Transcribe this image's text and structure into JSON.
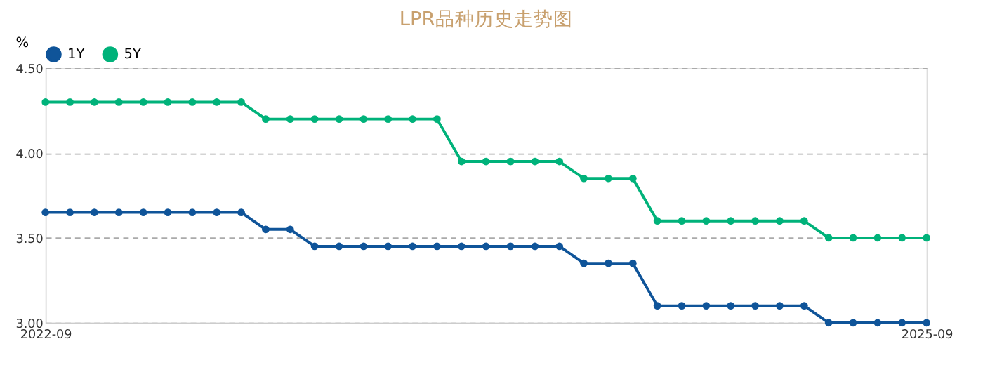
{
  "chart_data": {
    "type": "line",
    "title": "LPR品种历史走势图",
    "ylabel": "%",
    "categories": [
      "2022-09",
      null,
      null,
      null,
      null,
      null,
      null,
      null,
      null,
      null,
      null,
      null,
      null,
      null,
      null,
      null,
      null,
      null,
      null,
      null,
      null,
      null,
      null,
      null,
      null,
      null,
      null,
      null,
      null,
      null,
      null,
      null,
      null,
      null,
      null,
      null,
      "2025-09"
    ],
    "series": [
      {
        "name": "1Y",
        "color": "#0f5499",
        "values": [
          3.65,
          3.65,
          3.65,
          3.65,
          3.65,
          3.65,
          3.65,
          3.65,
          3.65,
          3.55,
          3.55,
          3.45,
          3.45,
          3.45,
          3.45,
          3.45,
          3.45,
          3.45,
          3.45,
          3.45,
          3.45,
          3.45,
          3.35,
          3.35,
          3.35,
          3.1,
          3.1,
          3.1,
          3.1,
          3.1,
          3.1,
          3.1,
          3.0,
          3.0,
          3.0,
          3.0,
          3.0
        ]
      },
      {
        "name": "5Y",
        "color": "#00b27a",
        "values": [
          4.3,
          4.3,
          4.3,
          4.3,
          4.3,
          4.3,
          4.3,
          4.3,
          4.3,
          4.2,
          4.2,
          4.2,
          4.2,
          4.2,
          4.2,
          4.2,
          4.2,
          3.95,
          3.95,
          3.95,
          3.95,
          3.95,
          3.85,
          3.85,
          3.85,
          3.6,
          3.6,
          3.6,
          3.6,
          3.6,
          3.6,
          3.6,
          3.5,
          3.5,
          3.5,
          3.5,
          3.5
        ]
      }
    ],
    "ylim": [
      3.0,
      4.5
    ],
    "yticks": [
      {
        "value": 3.0,
        "label": "3.00"
      },
      {
        "value": 3.5,
        "label": "3.50"
      },
      {
        "value": 4.0,
        "label": "4.00"
      },
      {
        "value": 4.5,
        "label": "4.50"
      }
    ],
    "grid": "y",
    "legend": "top",
    "marker": "circle",
    "line_style": "solid"
  }
}
